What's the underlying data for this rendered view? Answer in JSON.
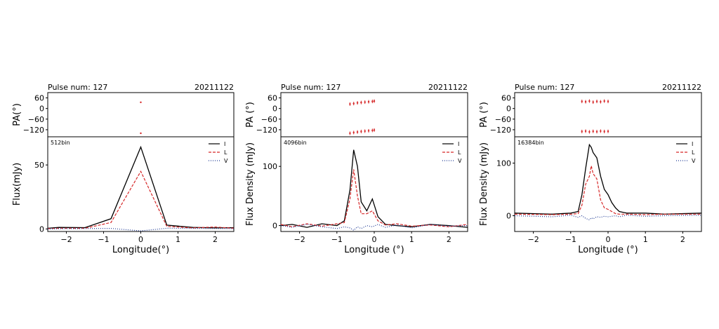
{
  "chart_data": [
    {
      "type": "line",
      "header_left": "Pulse num: 127",
      "header_right": "20211122",
      "bin_label": "512bin",
      "pa_ylabel": "PA(°)",
      "flux_ylabel": "Flux(mJy)",
      "xlabel": "Longitude(°)",
      "xlim": [
        -2.5,
        2.5
      ],
      "xticks": [
        "−2",
        "−1",
        "0",
        "1",
        "2"
      ],
      "pa_ylim": [
        -160,
        90
      ],
      "pa_yticks": [
        "60",
        "0",
        "−60",
        "−120"
      ],
      "flux_ylim": [
        -2,
        72
      ],
      "flux_yticks": [
        "0",
        "50"
      ],
      "legend": [
        "I",
        "L",
        "V"
      ],
      "colors": {
        "I": "#000000",
        "L": "#d62728",
        "V": "#1f3a93"
      },
      "pa_points": [
        [
          0.0,
          35
        ],
        [
          0.0,
          -140
        ]
      ],
      "series": [
        {
          "name": "I",
          "x": [
            -2.5,
            -2.2,
            -1.5,
            -0.8,
            0.0,
            0.7,
            1.4,
            2.0,
            2.5
          ],
          "y": [
            0.5,
            1.2,
            1.0,
            8,
            64,
            3,
            1.2,
            0.8,
            1.0
          ]
        },
        {
          "name": "L",
          "x": [
            -2.5,
            -2.2,
            -1.5,
            -0.8,
            0.0,
            0.7,
            1.4,
            2.0,
            2.5
          ],
          "y": [
            0.2,
            0.6,
            0.5,
            5,
            45,
            2,
            0.8,
            1.5,
            0.5
          ]
        },
        {
          "name": "V",
          "x": [
            -2.5,
            -2.2,
            -1.5,
            -0.8,
            0.0,
            0.7,
            1.4,
            2.0,
            2.5
          ],
          "y": [
            0.0,
            0.2,
            0.3,
            0.4,
            -1.5,
            0.5,
            0.4,
            0.3,
            0.2
          ]
        }
      ]
    },
    {
      "type": "line",
      "header_left": "Pulse num: 127",
      "header_right": "20211122",
      "bin_label": "4096bin",
      "pa_ylabel": "PA (°)",
      "flux_ylabel": "Flux Density (mJy)",
      "xlabel": "Longitude (°)",
      "xlim": [
        -2.5,
        2.5
      ],
      "xticks": [
        "−2",
        "−1",
        "0",
        "1",
        "2"
      ],
      "pa_ylim": [
        -160,
        90
      ],
      "pa_yticks": [
        "60",
        "0",
        "−60",
        "−120"
      ],
      "flux_ylim": [
        -10,
        150
      ],
      "flux_yticks": [
        "0",
        "100"
      ],
      "legend": [
        "I",
        "L",
        "V"
      ],
      "colors": {
        "I": "#000000",
        "L": "#d62728",
        "V": "#1f3a93"
      },
      "pa_upper": {
        "x": [
          -0.65,
          -0.55,
          -0.45,
          -0.35,
          -0.25,
          -0.15,
          -0.05,
          0.0
        ],
        "y": [
          25,
          28,
          32,
          34,
          36,
          38,
          40,
          42
        ]
      },
      "pa_lower": {
        "x": [
          -0.65,
          -0.55,
          -0.45,
          -0.35,
          -0.25,
          -0.15,
          -0.05,
          0.0
        ],
        "y": [
          -140,
          -136,
          -133,
          -130,
          -128,
          -126,
          -124,
          -122
        ]
      },
      "series": [
        {
          "name": "I",
          "x": [
            -2.5,
            -2.2,
            -1.8,
            -1.4,
            -1.0,
            -0.8,
            -0.65,
            -0.55,
            -0.45,
            -0.35,
            -0.2,
            -0.05,
            0.1,
            0.3,
            0.6,
            1.0,
            1.5,
            2.0,
            2.5
          ],
          "y": [
            0,
            2,
            -3,
            3,
            0,
            8,
            60,
            128,
            100,
            40,
            25,
            45,
            15,
            2,
            0,
            -2,
            2,
            0,
            -3
          ]
        },
        {
          "name": "L",
          "x": [
            -2.5,
            -2.2,
            -1.8,
            -1.4,
            -1.0,
            -0.8,
            -0.65,
            -0.55,
            -0.45,
            -0.35,
            -0.2,
            -0.05,
            0.1,
            0.3,
            0.6,
            1.0,
            1.5,
            2.0,
            2.5
          ],
          "y": [
            2,
            -2,
            3,
            -1,
            3,
            5,
            45,
            95,
            50,
            20,
            20,
            25,
            8,
            1,
            3,
            -1,
            1,
            -2,
            2
          ]
        },
        {
          "name": "V",
          "x": [
            -2.5,
            -2.2,
            -1.8,
            -1.4,
            -1.0,
            -0.8,
            -0.65,
            -0.55,
            -0.45,
            -0.35,
            -0.2,
            -0.05,
            0.1,
            0.3,
            0.6,
            1.0,
            1.5,
            2.0,
            2.5
          ],
          "y": [
            0,
            -3,
            2,
            -2,
            -5,
            -2,
            -4,
            -8,
            -2,
            -5,
            0,
            -2,
            2,
            -3,
            1,
            -4,
            2,
            -1,
            0
          ]
        }
      ]
    },
    {
      "type": "line",
      "header_left": "Pulse num: 127",
      "header_right": "20211122",
      "bin_label": "16384bin",
      "pa_ylabel": "PA (°)",
      "flux_ylabel": "Flux Density (mJy)",
      "xlabel": "Longitude (°)",
      "xlim": [
        -2.5,
        2.5
      ],
      "xticks": [
        "−2",
        "−1",
        "0",
        "1",
        "2"
      ],
      "pa_ylim": [
        -160,
        90
      ],
      "pa_yticks": [
        "60",
        "0",
        "−60",
        "−120"
      ],
      "flux_ylim": [
        -30,
        150
      ],
      "flux_yticks": [
        "0",
        "100"
      ],
      "legend": [
        "I",
        "L",
        "V"
      ],
      "colors": {
        "I": "#000000",
        "L": "#d62728",
        "V": "#1f3a93"
      },
      "pa_upper": {
        "x": [
          -0.7,
          -0.6,
          -0.5,
          -0.4,
          -0.3,
          -0.2,
          -0.1,
          0.0
        ],
        "y": [
          40,
          38,
          42,
          36,
          40,
          38,
          42,
          40
        ]
      },
      "pa_lower": {
        "x": [
          -0.7,
          -0.6,
          -0.5,
          -0.4,
          -0.3,
          -0.2,
          -0.1,
          0.0
        ],
        "y": [
          -130,
          -128,
          -132,
          -129,
          -131,
          -128,
          -130,
          -129
        ]
      },
      "series": [
        {
          "name": "I",
          "x": [
            -2.5,
            -1.5,
            -1.0,
            -0.8,
            -0.7,
            -0.6,
            -0.5,
            -0.45,
            -0.4,
            -0.3,
            -0.2,
            -0.1,
            0.0,
            0.1,
            0.2,
            0.3,
            0.5,
            1.0,
            1.5,
            2.5
          ],
          "y": [
            5,
            3,
            5,
            8,
            40,
            90,
            135,
            130,
            120,
            110,
            75,
            50,
            40,
            25,
            15,
            8,
            5,
            5,
            3,
            5
          ]
        },
        {
          "name": "L",
          "x": [
            -2.5,
            -1.5,
            -1.0,
            -0.8,
            -0.7,
            -0.6,
            -0.5,
            -0.45,
            -0.4,
            -0.3,
            -0.2,
            -0.1,
            0.0,
            0.1,
            0.2,
            0.3,
            0.5,
            1.0,
            1.5,
            2.5
          ],
          "y": [
            3,
            2,
            3,
            4,
            20,
            60,
            75,
            95,
            80,
            70,
            30,
            15,
            12,
            8,
            4,
            3,
            3,
            2,
            3,
            3
          ]
        },
        {
          "name": "V",
          "x": [
            -2.5,
            -1.5,
            -1.0,
            -0.8,
            -0.7,
            -0.6,
            -0.5,
            -0.45,
            -0.4,
            -0.3,
            -0.2,
            -0.1,
            0.0,
            0.1,
            0.2,
            0.3,
            0.5,
            1.0,
            1.5,
            2.5
          ],
          "y": [
            0,
            -2,
            1,
            -3,
            0,
            -5,
            -8,
            -4,
            -6,
            -2,
            -3,
            -1,
            -2,
            -1,
            0,
            -2,
            1,
            -1,
            0,
            1
          ]
        }
      ]
    }
  ]
}
